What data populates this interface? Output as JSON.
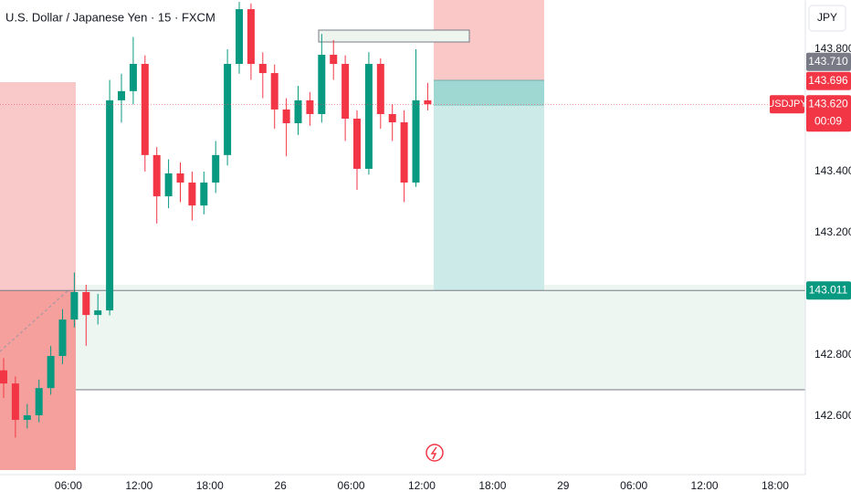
{
  "chart_data": {
    "type": "candlestick",
    "title": "U.S. Dollar / Japanese Yen · 15 · FXCM",
    "currency": "JPY",
    "x": [
      0.5,
      1.5,
      2.5,
      3.5,
      4.5,
      5.5,
      6.5,
      7.5,
      8.5,
      9.5,
      10.5,
      11.5,
      12.5,
      13.5,
      14.5,
      15.5,
      16.5,
      17.5,
      18.5,
      19.5,
      20.5,
      21.5,
      22.5,
      23.5,
      24.5,
      25.5,
      26.5,
      27.5,
      28.5,
      29.5,
      30.5,
      31.5,
      32.5,
      33.5,
      34.5,
      35.5,
      36.5
    ],
    "open": [
      142.75,
      142.707,
      142.588,
      142.603,
      142.692,
      142.797,
      142.916,
      143.006,
      142.931,
      142.946,
      143.633,
      143.663,
      143.752,
      143.454,
      143.319,
      143.394,
      143.364,
      143.289,
      143.364,
      143.454,
      143.752,
      143.931,
      143.752,
      143.722,
      143.603,
      143.558,
      143.633,
      143.588,
      143.782,
      143.752,
      143.573,
      143.409,
      143.752,
      143.588,
      143.561,
      143.364,
      143.633
    ],
    "high": [
      142.79,
      142.73,
      142.64,
      142.72,
      142.83,
      142.95,
      143.07,
      143.03,
      143.0,
      143.7,
      143.72,
      143.84,
      143.78,
      143.48,
      143.44,
      143.43,
      143.4,
      143.4,
      143.5,
      143.8,
      143.955,
      143.95,
      143.79,
      143.75,
      143.64,
      143.68,
      143.66,
      143.85,
      143.83,
      143.78,
      143.6,
      143.79,
      143.77,
      143.62,
      143.6,
      143.8,
      143.69
    ],
    "low": [
      142.66,
      142.53,
      142.56,
      142.58,
      142.67,
      142.77,
      142.89,
      142.83,
      142.9,
      142.93,
      143.56,
      143.62,
      143.4,
      143.23,
      143.28,
      143.3,
      143.24,
      143.26,
      143.33,
      143.42,
      143.72,
      143.7,
      143.64,
      143.54,
      143.45,
      143.52,
      143.55,
      143.56,
      143.7,
      143.5,
      143.34,
      143.39,
      143.54,
      143.5,
      143.3,
      143.35,
      143.6
    ],
    "close": [
      142.707,
      142.588,
      142.603,
      142.692,
      142.797,
      142.916,
      143.006,
      142.931,
      142.946,
      143.633,
      143.663,
      143.752,
      143.454,
      143.319,
      143.394,
      143.364,
      143.289,
      143.364,
      143.454,
      143.752,
      143.931,
      143.752,
      143.722,
      143.603,
      143.558,
      143.633,
      143.588,
      143.782,
      143.752,
      143.573,
      143.409,
      143.752,
      143.588,
      143.561,
      143.364,
      143.633,
      143.62
    ],
    "up_color": "#089981",
    "down_color": "#f23645",
    "xlim": [
      0.19,
      68.56
    ],
    "xticks": [
      {
        "value": 6,
        "label": "06:00"
      },
      {
        "value": 12,
        "label": "12:00"
      },
      {
        "value": 18,
        "label": "18:00"
      },
      {
        "value": 24,
        "label": "26"
      },
      {
        "value": 30,
        "label": "06:00"
      },
      {
        "value": 36,
        "label": "12:00"
      },
      {
        "value": 42,
        "label": "18:00"
      },
      {
        "value": 48,
        "label": "29"
      },
      {
        "value": 54,
        "label": "06:00"
      },
      {
        "value": 60,
        "label": "12:00"
      },
      {
        "value": 66,
        "label": "18:00"
      }
    ],
    "ylim": [
      142.409,
      143.961
    ],
    "yticks": [
      {
        "value": 143.8,
        "label": "143.800"
      },
      {
        "value": 143.4,
        "label": "143.400"
      },
      {
        "value": 143.2,
        "label": "143.200"
      },
      {
        "value": 142.8,
        "label": "142.800"
      },
      {
        "value": 142.6,
        "label": "142.600"
      }
    ],
    "price_labels": [
      {
        "value": 143.71,
        "label": "143.710",
        "color": "#787b86"
      },
      {
        "value": 143.696,
        "label": "143.696",
        "color": "#f23645"
      },
      {
        "value": 143.62,
        "label": "143.620",
        "color": "#f23645"
      }
    ],
    "countdown": "00:09",
    "symbol_tag": "USDJPY",
    "level": {
      "value": 143.011,
      "label": "143.011",
      "color": "#089981"
    }
  }
}
